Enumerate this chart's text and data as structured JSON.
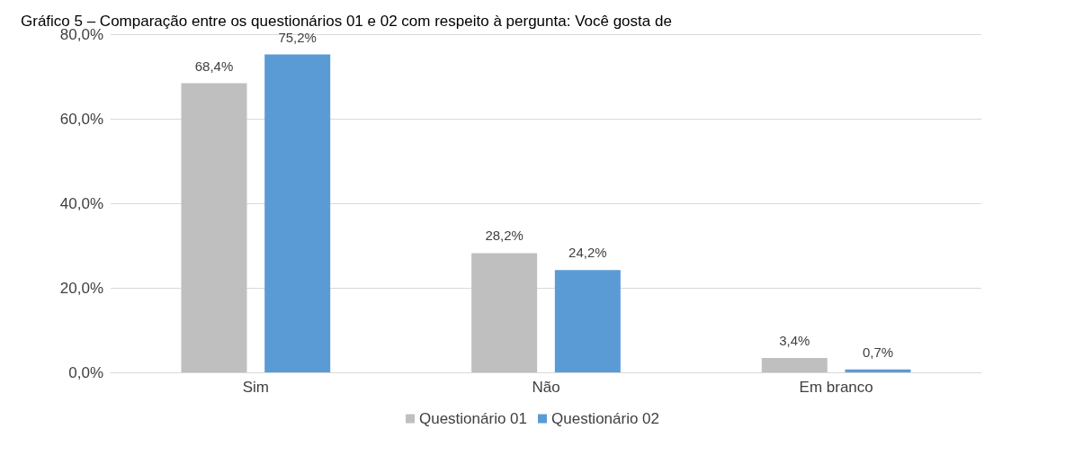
{
  "chart_data": {
    "type": "bar",
    "title": "Gráfico 5 – Comparação entre os questionários 01 e 02 com respeito à pergunta: Você gosta de",
    "categories": [
      "Sim",
      "Não",
      "Em branco"
    ],
    "series": [
      {
        "name": "Questionário 01",
        "color": "#bfbfbf",
        "values": [
          68.4,
          28.2,
          3.4
        ],
        "value_labels": [
          "68,4%",
          "28,2%",
          "3,4%"
        ]
      },
      {
        "name": "Questionário 02",
        "color": "#5b9bd5",
        "values": [
          75.2,
          24.2,
          0.7
        ],
        "value_labels": [
          "75,2%",
          "24,2%",
          "0,7%"
        ]
      }
    ],
    "ylim": [
      0,
      80
    ],
    "yticks": [
      {
        "value": 0,
        "label": "0,0%"
      },
      {
        "value": 20,
        "label": "20,0%"
      },
      {
        "value": 40,
        "label": "40,0%"
      },
      {
        "value": 60,
        "label": "60,0%"
      },
      {
        "value": 80,
        "label": "80,0%"
      }
    ],
    "grid": "y",
    "legend": "bottom"
  }
}
